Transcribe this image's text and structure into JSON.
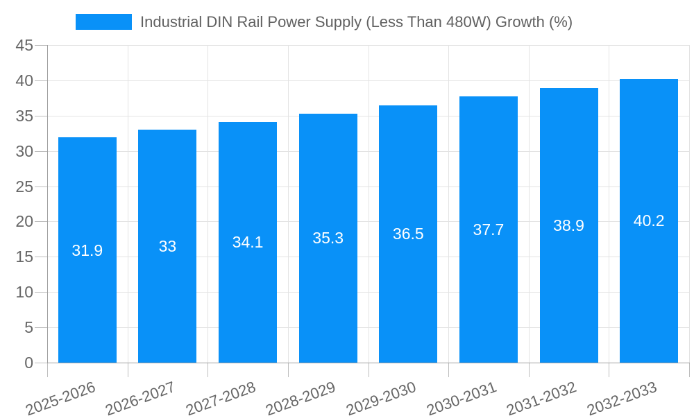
{
  "chart_data": {
    "type": "bar",
    "title": "Industrial DIN Rail Power Supply (Less Than 480W) Growth (%)",
    "legend_label": "Industrial DIN Rail Power Supply (Less Than 480W) Growth (%)",
    "legend_position": "top",
    "categories": [
      "2025-2026",
      "2026-2027",
      "2027-2028",
      "2028-2029",
      "2029-2030",
      "2030-2031",
      "2031-2032",
      "2032-2033"
    ],
    "values": [
      31.9,
      33,
      34.1,
      35.3,
      36.5,
      37.7,
      38.9,
      40.2
    ],
    "value_labels": [
      "31.9",
      "33",
      "34.1",
      "35.3",
      "36.5",
      "37.7",
      "38.9",
      "40.2"
    ],
    "xlabel": "",
    "ylabel": "",
    "ylim": [
      0,
      45
    ],
    "yticks": [
      0,
      5,
      10,
      15,
      20,
      25,
      30,
      35,
      40,
      45
    ],
    "grid": true,
    "style": {
      "bar_color": "#0991f8",
      "bar_value_text_color": "#ffffff",
      "legend_text_color": "#616161",
      "axis_label_color": "#666666",
      "gridline_color": "#e3e3e3",
      "axis_line_color": "#9e9e9e",
      "background_color": "#ffffff"
    }
  }
}
